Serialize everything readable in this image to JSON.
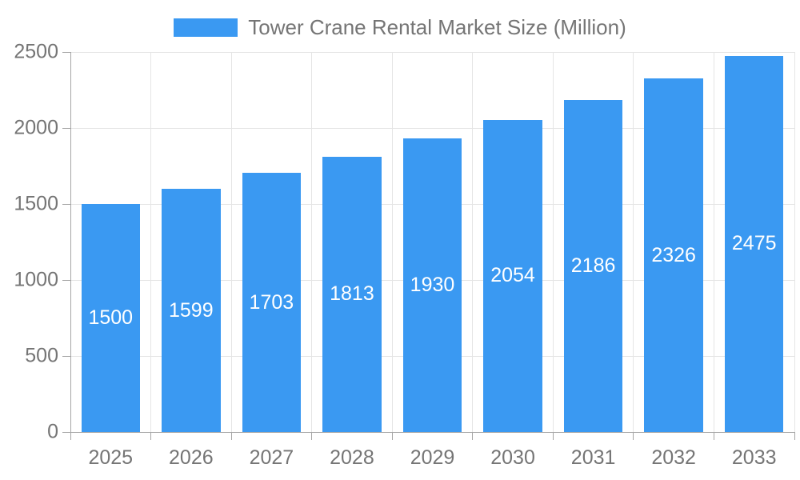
{
  "chart_data": {
    "type": "bar",
    "title": "Tower Crane Rental Market Size (Million)",
    "categories": [
      "2025",
      "2026",
      "2027",
      "2028",
      "2029",
      "2030",
      "2031",
      "2032",
      "2033"
    ],
    "values": [
      1500,
      1599,
      1703,
      1813,
      1930,
      2054,
      2186,
      2326,
      2475
    ],
    "xlabel": "",
    "ylabel": "",
    "ylim": [
      0,
      2500
    ],
    "yticks": [
      0,
      500,
      1000,
      1500,
      2000,
      2500
    ],
    "grid": true,
    "legend_position": "top-center",
    "colors": {
      "bar": "#3a99f2",
      "bar_label": "#ffffff",
      "axis_text": "#757575",
      "grid_line": "#e5e5e5",
      "axis_line": "#a6a6a6",
      "background": "#ffffff"
    }
  }
}
